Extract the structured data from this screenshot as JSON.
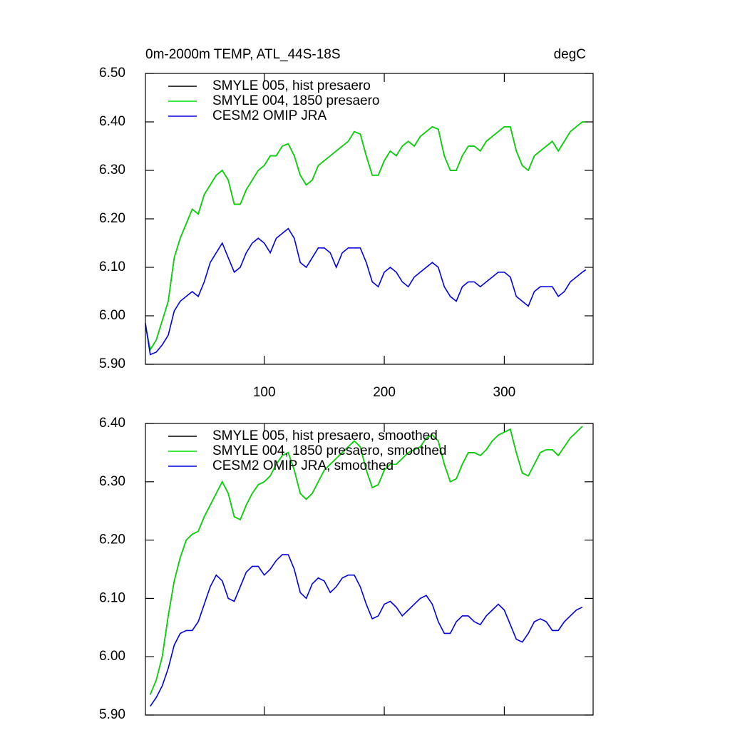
{
  "chart_data": [
    {
      "type": "line",
      "title": "0m-2000m TEMP, ATL_44S-18S",
      "title_right": "degC",
      "legend": "top-left",
      "x": [
        1,
        5,
        10,
        15,
        20,
        25,
        30,
        35,
        40,
        45,
        50,
        55,
        60,
        65,
        70,
        75,
        80,
        85,
        90,
        95,
        100,
        105,
        110,
        115,
        120,
        125,
        130,
        135,
        140,
        145,
        150,
        155,
        160,
        165,
        170,
        175,
        180,
        185,
        190,
        195,
        200,
        205,
        210,
        215,
        220,
        225,
        230,
        235,
        240,
        245,
        250,
        255,
        260,
        265,
        270,
        275,
        280,
        285,
        290,
        295,
        300,
        305,
        310,
        315,
        320,
        325,
        330,
        335,
        340,
        345,
        350,
        355,
        360,
        365,
        368
      ],
      "xlim": [
        1,
        374
      ],
      "xticks": [
        100,
        200,
        300
      ],
      "ylim": [
        5.9,
        6.5
      ],
      "yticks": [
        {
          "value": 5.9,
          "label": "5.90"
        },
        {
          "value": 6.0,
          "label": "6.00"
        },
        {
          "value": 6.1,
          "label": "6.10"
        },
        {
          "value": 6.2,
          "label": "6.20"
        },
        {
          "value": 6.3,
          "label": "6.30"
        },
        {
          "value": 6.4,
          "label": "6.40"
        },
        {
          "value": 6.5,
          "label": "6.50"
        }
      ],
      "series": [
        {
          "name": "SMYLE 005, hist presaero",
          "color": "#000000",
          "values": [
            5.98,
            5.93,
            5.95,
            5.99,
            6.03,
            6.12,
            6.16,
            6.19,
            6.22,
            6.21,
            6.25,
            6.27,
            6.29,
            6.3,
            6.28,
            6.23,
            6.23,
            6.26,
            6.28,
            6.3,
            6.31,
            6.33,
            6.33,
            6.35,
            6.355,
            6.33,
            6.29,
            6.27,
            6.28,
            6.31,
            6.32,
            6.33,
            6.34,
            6.35,
            6.36,
            6.38,
            6.375,
            6.33,
            6.29,
            6.29,
            6.32,
            6.34,
            6.33,
            6.35,
            6.36,
            6.35,
            6.37,
            6.38,
            6.39,
            6.385,
            6.33,
            6.3,
            6.3,
            6.33,
            6.35,
            6.35,
            6.34,
            6.36,
            6.37,
            6.38,
            6.39,
            6.39,
            6.34,
            6.31,
            6.3,
            6.33,
            6.34,
            6.35,
            6.36,
            6.34,
            6.36,
            6.38,
            6.39,
            6.4,
            6.4
          ]
        },
        {
          "name": "SMYLE 004, 1850 presaero",
          "color": "#00dd00",
          "values": [
            5.98,
            5.93,
            5.95,
            5.99,
            6.03,
            6.12,
            6.16,
            6.19,
            6.22,
            6.21,
            6.25,
            6.27,
            6.29,
            6.3,
            6.28,
            6.23,
            6.23,
            6.26,
            6.28,
            6.3,
            6.31,
            6.33,
            6.33,
            6.35,
            6.355,
            6.33,
            6.29,
            6.27,
            6.28,
            6.31,
            6.32,
            6.33,
            6.34,
            6.35,
            6.36,
            6.38,
            6.375,
            6.33,
            6.29,
            6.29,
            6.32,
            6.34,
            6.33,
            6.35,
            6.36,
            6.35,
            6.37,
            6.38,
            6.39,
            6.385,
            6.33,
            6.3,
            6.3,
            6.33,
            6.35,
            6.35,
            6.34,
            6.36,
            6.37,
            6.38,
            6.39,
            6.39,
            6.34,
            6.31,
            6.3,
            6.33,
            6.34,
            6.35,
            6.36,
            6.34,
            6.36,
            6.38,
            6.39,
            6.4,
            6.4
          ]
        },
        {
          "name": "CESM2 OMIP JRA",
          "color": "#0000dd",
          "values": [
            5.985,
            5.92,
            5.925,
            5.94,
            5.96,
            6.01,
            6.03,
            6.04,
            6.05,
            6.04,
            6.07,
            6.11,
            6.13,
            6.15,
            6.12,
            6.09,
            6.1,
            6.13,
            6.15,
            6.16,
            6.15,
            6.13,
            6.16,
            6.17,
            6.18,
            6.16,
            6.11,
            6.1,
            6.12,
            6.14,
            6.14,
            6.13,
            6.1,
            6.13,
            6.14,
            6.14,
            6.14,
            6.11,
            6.07,
            6.06,
            6.09,
            6.1,
            6.09,
            6.07,
            6.06,
            6.08,
            6.09,
            6.1,
            6.11,
            6.1,
            6.06,
            6.04,
            6.03,
            6.06,
            6.07,
            6.07,
            6.06,
            6.07,
            6.08,
            6.09,
            6.09,
            6.08,
            6.04,
            6.03,
            6.02,
            6.05,
            6.06,
            6.06,
            6.06,
            6.04,
            6.05,
            6.07,
            6.08,
            6.09,
            6.095
          ]
        }
      ]
    },
    {
      "type": "line",
      "legend": "top-left",
      "x": [
        5,
        10,
        15,
        20,
        25,
        30,
        35,
        40,
        45,
        50,
        55,
        60,
        65,
        70,
        75,
        80,
        85,
        90,
        95,
        100,
        105,
        110,
        115,
        120,
        125,
        130,
        135,
        140,
        145,
        150,
        155,
        160,
        165,
        170,
        175,
        180,
        185,
        190,
        195,
        200,
        205,
        210,
        215,
        220,
        225,
        230,
        235,
        240,
        245,
        250,
        255,
        260,
        265,
        270,
        275,
        280,
        285,
        290,
        295,
        300,
        305,
        310,
        315,
        320,
        325,
        330,
        335,
        340,
        345,
        350,
        355,
        360,
        365
      ],
      "xlim": [
        1,
        374
      ],
      "ylim": [
        5.9,
        6.4
      ],
      "yticks": [
        {
          "value": 5.9,
          "label": "5.90"
        },
        {
          "value": 6.0,
          "label": "6.00"
        },
        {
          "value": 6.1,
          "label": "6.10"
        },
        {
          "value": 6.2,
          "label": "6.20"
        },
        {
          "value": 6.3,
          "label": "6.30"
        },
        {
          "value": 6.4,
          "label": "6.40"
        }
      ],
      "series": [
        {
          "name": "SMYLE 005, hist presaero, smoothed",
          "color": "#000000",
          "values": [
            5.935,
            5.96,
            6.0,
            6.07,
            6.13,
            6.17,
            6.2,
            6.21,
            6.215,
            6.24,
            6.26,
            6.28,
            6.3,
            6.28,
            6.24,
            6.235,
            6.26,
            6.28,
            6.295,
            6.3,
            6.31,
            6.33,
            6.345,
            6.35,
            6.32,
            6.28,
            6.27,
            6.28,
            6.3,
            6.32,
            6.33,
            6.34,
            6.35,
            6.36,
            6.37,
            6.36,
            6.32,
            6.29,
            6.295,
            6.32,
            6.33,
            6.33,
            6.34,
            6.35,
            6.355,
            6.36,
            6.375,
            6.38,
            6.37,
            6.33,
            6.3,
            6.305,
            6.33,
            6.35,
            6.35,
            6.345,
            6.355,
            6.37,
            6.38,
            6.385,
            6.39,
            6.35,
            6.315,
            6.31,
            6.33,
            6.35,
            6.355,
            6.355,
            6.345,
            6.36,
            6.375,
            6.385,
            6.395
          ]
        },
        {
          "name": "SMYLE 004, 1850 presaero, smoothed",
          "color": "#00dd00",
          "values": [
            5.935,
            5.96,
            6.0,
            6.07,
            6.13,
            6.17,
            6.2,
            6.21,
            6.215,
            6.24,
            6.26,
            6.28,
            6.3,
            6.28,
            6.24,
            6.235,
            6.26,
            6.28,
            6.295,
            6.3,
            6.31,
            6.33,
            6.345,
            6.35,
            6.32,
            6.28,
            6.27,
            6.28,
            6.3,
            6.32,
            6.33,
            6.34,
            6.35,
            6.36,
            6.37,
            6.36,
            6.32,
            6.29,
            6.295,
            6.32,
            6.33,
            6.33,
            6.34,
            6.35,
            6.355,
            6.36,
            6.375,
            6.38,
            6.37,
            6.33,
            6.3,
            6.305,
            6.33,
            6.35,
            6.35,
            6.345,
            6.355,
            6.37,
            6.38,
            6.385,
            6.39,
            6.35,
            6.315,
            6.31,
            6.33,
            6.35,
            6.355,
            6.355,
            6.345,
            6.36,
            6.375,
            6.385,
            6.395
          ]
        },
        {
          "name": "CESM2 OMIP JRA, smoothed",
          "color": "#0000dd",
          "values": [
            5.915,
            5.93,
            5.95,
            5.98,
            6.02,
            6.04,
            6.045,
            6.045,
            6.06,
            6.09,
            6.12,
            6.14,
            6.13,
            6.1,
            6.095,
            6.12,
            6.145,
            6.155,
            6.155,
            6.14,
            6.15,
            6.165,
            6.175,
            6.175,
            6.15,
            6.11,
            6.1,
            6.125,
            6.135,
            6.13,
            6.11,
            6.12,
            6.135,
            6.14,
            6.14,
            6.12,
            6.09,
            6.065,
            6.07,
            6.09,
            6.095,
            6.085,
            6.07,
            6.08,
            6.09,
            6.1,
            6.105,
            6.09,
            6.06,
            6.04,
            6.04,
            6.06,
            6.07,
            6.07,
            6.06,
            6.055,
            6.07,
            6.08,
            6.09,
            6.08,
            6.055,
            6.03,
            6.025,
            6.04,
            6.06,
            6.065,
            6.06,
            6.045,
            6.045,
            6.06,
            6.07,
            6.08,
            6.085
          ]
        }
      ]
    }
  ]
}
